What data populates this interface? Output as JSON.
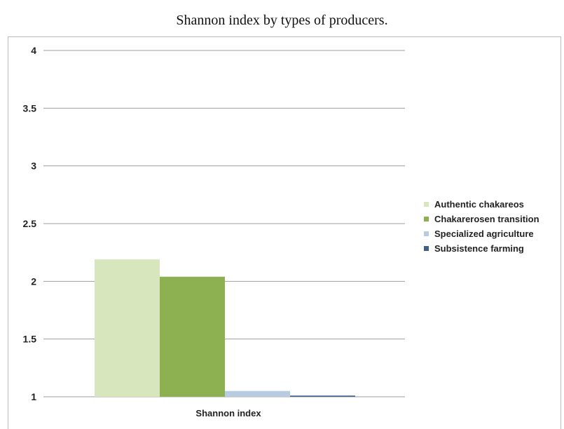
{
  "chart_data": {
    "type": "bar",
    "title": "Shannon index by types of producers.",
    "categories": [
      "Shannon index"
    ],
    "series": [
      {
        "name": "Authentic chakareos",
        "values": [
          2.19
        ],
        "color": "#d8e6bd"
      },
      {
        "name": "Chakarerosen transition",
        "values": [
          2.04
        ],
        "color": "#8db050"
      },
      {
        "name": "Specialized agriculture",
        "values": [
          1.05
        ],
        "color": "#b9cbe0"
      },
      {
        "name": "Subsistence farming",
        "values": [
          1.01
        ],
        "color": "#3f5f86"
      }
    ],
    "ylim": [
      1,
      4
    ],
    "yticks": [
      "1",
      "1.5",
      "2",
      "2.5",
      "3",
      "3.5",
      "4"
    ],
    "grid": true,
    "legend_position": "right"
  }
}
